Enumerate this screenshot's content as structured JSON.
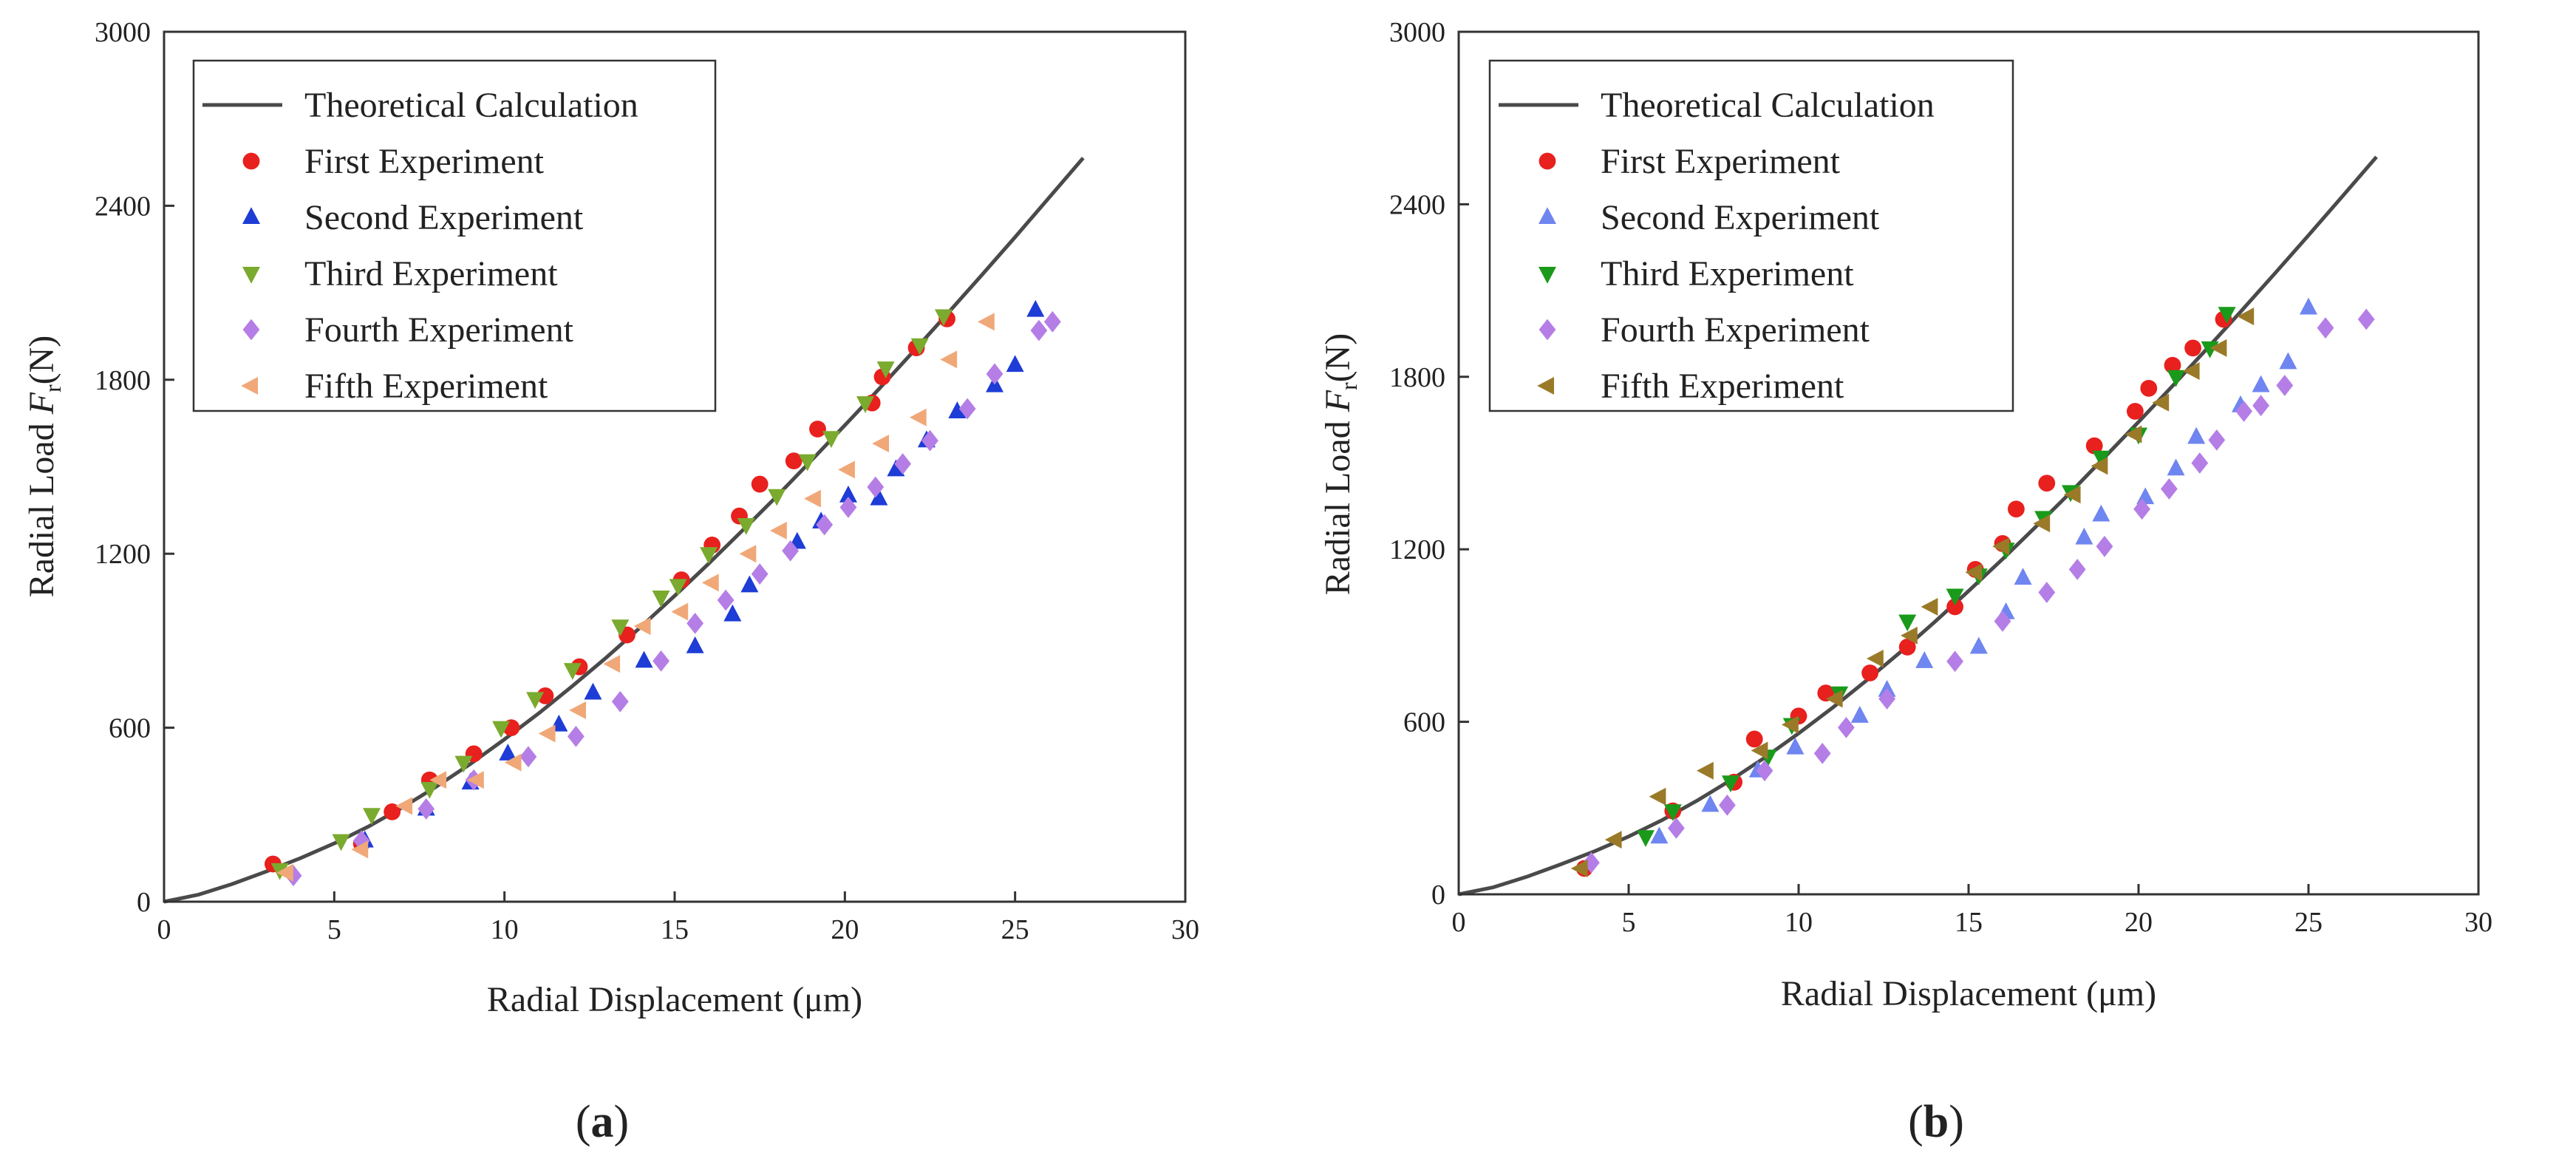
{
  "chart_data": [
    {
      "type": "scatter",
      "panel": "a",
      "xlabel": "Radial Displacement (μm)",
      "ylabel": {
        "main": "Radial Load ",
        "var": "F",
        "sub": "r",
        "unit": "(N)"
      },
      "xlim": [
        0,
        30
      ],
      "ylim": [
        0,
        3000
      ],
      "xticks": [
        "0",
        "5",
        "10",
        "15",
        "20",
        "25",
        "30"
      ],
      "yticks": [
        "0",
        "600",
        "1200",
        "1800",
        "2400",
        "3000"
      ],
      "legend_position": "top-left",
      "panel_label": {
        "open": "(",
        "letter": "a",
        "close": ")"
      },
      "series": [
        {
          "name": "Theoretical Calculation",
          "kind": "line",
          "color": "#4a4a4a",
          "x": [
            0,
            1,
            2,
            3,
            4,
            5,
            6,
            7,
            8,
            9,
            10,
            11,
            12,
            13,
            14,
            15,
            16,
            17,
            18,
            19,
            20,
            21,
            22,
            23,
            24,
            25,
            26,
            27
          ],
          "y": [
            0,
            24,
            61,
            104,
            150,
            201,
            259,
            325,
            397,
            475,
            560,
            649,
            744,
            843,
            947,
            1055,
            1166,
            1281,
            1398,
            1520,
            1643,
            1768,
            1896,
            2026,
            2158,
            2292,
            2428,
            2565
          ]
        },
        {
          "name": "First Experiment",
          "kind": "scatter",
          "marker": "circle",
          "color": "#e8201e",
          "x": [
            3.2,
            5.8,
            6.7,
            7.8,
            9.1,
            10.2,
            11.2,
            12.2,
            13.6,
            15.2,
            16.1,
            16.9,
            17.5,
            18.5,
            19.2,
            20.8,
            21.1,
            22.1,
            23.0
          ],
          "y": [
            130,
            200,
            310,
            420,
            510,
            600,
            710,
            810,
            920,
            1110,
            1230,
            1330,
            1440,
            1520,
            1630,
            1720,
            1810,
            1910,
            2010
          ]
        },
        {
          "name": "Second Experiment",
          "kind": "scatter",
          "marker": "triangle-up",
          "color": "#1e3cd6",
          "x": [
            5.9,
            7.7,
            9.0,
            10.1,
            11.6,
            12.6,
            14.1,
            15.6,
            16.7,
            17.2,
            18.6,
            19.3,
            20.1,
            21.0,
            21.5,
            22.4,
            23.3,
            24.4,
            25.0,
            25.6
          ],
          "y": [
            210,
            320,
            410,
            510,
            610,
            720,
            830,
            880,
            990,
            1090,
            1240,
            1310,
            1400,
            1390,
            1490,
            1590,
            1690,
            1780,
            1850,
            2040
          ]
        },
        {
          "name": "Third Experiment",
          "kind": "scatter",
          "marker": "triangle-down",
          "color": "#7aaa2e",
          "x": [
            3.4,
            5.2,
            6.1,
            7.8,
            8.8,
            9.9,
            10.9,
            12.0,
            13.4,
            14.6,
            15.1,
            16.0,
            17.1,
            18.0,
            18.9,
            19.6,
            20.6,
            21.2,
            22.2,
            22.9
          ],
          "y": [
            110,
            210,
            300,
            390,
            480,
            600,
            700,
            800,
            950,
            1050,
            1090,
            1200,
            1300,
            1400,
            1520,
            1600,
            1720,
            1840,
            1920,
            2020
          ]
        },
        {
          "name": "Fourth Experiment",
          "kind": "scatter",
          "marker": "diamond",
          "color": "#b57ee6",
          "x": [
            3.8,
            5.8,
            7.7,
            9.1,
            10.7,
            12.1,
            13.4,
            14.6,
            15.6,
            16.5,
            17.5,
            18.4,
            19.4,
            20.1,
            20.9,
            21.7,
            22.5,
            23.6,
            24.4,
            25.7,
            26.1
          ],
          "y": [
            90,
            210,
            320,
            420,
            500,
            570,
            690,
            830,
            960,
            1040,
            1130,
            1210,
            1300,
            1360,
            1430,
            1510,
            1590,
            1700,
            1820,
            1970,
            2000
          ]
        },
        {
          "name": "Fifth Experiment",
          "kind": "scatter",
          "marker": "triangle-left",
          "color": "#f0a878",
          "x": [
            3.6,
            5.8,
            7.1,
            8.1,
            9.2,
            10.3,
            11.3,
            12.2,
            13.2,
            14.1,
            15.2,
            16.1,
            17.2,
            18.1,
            19.1,
            20.1,
            21.1,
            22.2,
            23.1,
            24.2
          ],
          "y": [
            100,
            180,
            330,
            420,
            420,
            480,
            580,
            660,
            820,
            950,
            1000,
            1100,
            1200,
            1280,
            1390,
            1490,
            1580,
            1670,
            1870,
            2000
          ]
        }
      ]
    },
    {
      "type": "scatter",
      "panel": "b",
      "xlabel": "Radial Displacement (μm)",
      "ylabel": {
        "main": "Radial Load ",
        "var": "F",
        "sub": "r",
        "unit": "(N)"
      },
      "xlim": [
        0,
        30
      ],
      "ylim": [
        0,
        3000
      ],
      "xticks": [
        "0",
        "5",
        "10",
        "15",
        "20",
        "25",
        "30"
      ],
      "yticks": [
        "0",
        "600",
        "1200",
        "1800",
        "2400",
        "3000"
      ],
      "legend_position": "top-left",
      "panel_label": {
        "open": "(",
        "letter": "b",
        "close": ")"
      },
      "series": [
        {
          "name": "Theoretical Calculation",
          "kind": "line",
          "color": "#4a4a4a",
          "x": [
            0,
            1,
            2,
            3,
            4,
            5,
            6,
            7,
            8,
            9,
            10,
            11,
            12,
            13,
            14,
            15,
            16,
            17,
            18,
            19,
            20,
            21,
            22,
            23,
            24,
            25,
            26,
            27
          ],
          "y": [
            0,
            24,
            61,
            104,
            150,
            201,
            259,
            325,
            397,
            475,
            560,
            649,
            744,
            843,
            947,
            1055,
            1166,
            1281,
            1398,
            1520,
            1643,
            1768,
            1896,
            2026,
            2158,
            2292,
            2428,
            2565
          ]
        },
        {
          "name": "First Experiment",
          "kind": "scatter",
          "marker": "circle",
          "color": "#e8201e",
          "x": [
            3.7,
            6.3,
            8.1,
            8.7,
            10.0,
            10.8,
            12.1,
            13.2,
            14.6,
            15.2,
            16.0,
            16.4,
            17.3,
            18.7,
            19.9,
            20.3,
            21.0,
            21.6,
            22.5
          ],
          "y": [
            90,
            290,
            390,
            540,
            620,
            700,
            770,
            860,
            1000,
            1130,
            1220,
            1340,
            1430,
            1560,
            1680,
            1760,
            1840,
            1900,
            2000
          ]
        },
        {
          "name": "Second Experiment",
          "kind": "scatter",
          "marker": "triangle-up",
          "color": "#6f85f0",
          "x": [
            5.9,
            7.4,
            8.8,
            9.9,
            11.8,
            12.6,
            13.7,
            15.3,
            16.1,
            16.6,
            18.4,
            18.9,
            20.2,
            21.1,
            21.7,
            23.0,
            23.6,
            24.4,
            25.0
          ],
          "y": [
            200,
            310,
            430,
            510,
            620,
            710,
            810,
            860,
            980,
            1100,
            1240,
            1320,
            1380,
            1480,
            1590,
            1700,
            1770,
            1850,
            2040
          ]
        },
        {
          "name": "Third Experiment",
          "kind": "scatter",
          "marker": "triangle-down",
          "color": "#1a9a1a",
          "x": [
            5.5,
            6.3,
            8.0,
            9.1,
            9.8,
            11.2,
            13.2,
            14.6,
            15.3,
            16.1,
            17.2,
            18.0,
            18.9,
            20.0,
            21.1,
            22.1,
            22.6
          ],
          "y": [
            200,
            290,
            390,
            480,
            590,
            700,
            950,
            1040,
            1110,
            1200,
            1310,
            1400,
            1520,
            1600,
            1800,
            1900,
            2020
          ]
        },
        {
          "name": "Fourth Experiment",
          "kind": "scatter",
          "marker": "diamond",
          "color": "#b57ee6",
          "x": [
            3.9,
            6.4,
            7.9,
            9.0,
            10.7,
            11.4,
            12.6,
            14.6,
            16.0,
            17.3,
            18.2,
            19.0,
            20.1,
            20.9,
            21.8,
            22.3,
            23.1,
            23.6,
            24.3,
            25.5,
            26.7
          ],
          "y": [
            110,
            230,
            310,
            430,
            490,
            580,
            680,
            810,
            950,
            1050,
            1130,
            1210,
            1340,
            1410,
            1500,
            1580,
            1680,
            1700,
            1770,
            1970,
            2000
          ]
        },
        {
          "name": "Fifth Experiment",
          "kind": "scatter",
          "marker": "triangle-left",
          "color": "#9a7a28",
          "x": [
            3.6,
            4.6,
            5.9,
            7.3,
            8.9,
            9.8,
            11.1,
            12.3,
            13.3,
            13.9,
            15.2,
            16.0,
            17.2,
            18.1,
            18.9,
            19.9,
            20.7,
            21.6,
            22.4,
            23.2
          ],
          "y": [
            90,
            190,
            340,
            430,
            500,
            590,
            680,
            820,
            900,
            1000,
            1120,
            1210,
            1290,
            1390,
            1490,
            1600,
            1710,
            1820,
            1900,
            2010
          ]
        }
      ]
    }
  ]
}
